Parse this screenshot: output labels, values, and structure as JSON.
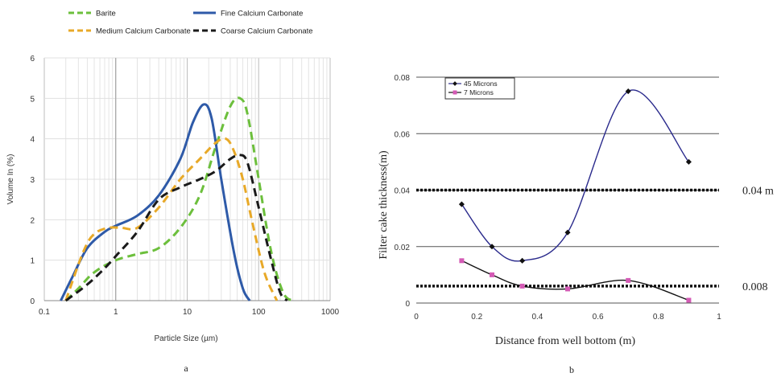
{
  "chart_data": [
    {
      "type": "line",
      "caption": "a",
      "xlabel": "Particle Size (µm)",
      "ylabel": "Volume In (%)",
      "xscale": "log",
      "xlim": [
        0.1,
        1000
      ],
      "ylim": [
        0,
        6
      ],
      "xticks": [
        "0.1",
        "1",
        "10",
        "100",
        "1000"
      ],
      "yticks": [
        "0",
        "1",
        "2",
        "3",
        "4",
        "5",
        "6"
      ],
      "grid": true,
      "legend_position": "top",
      "series": [
        {
          "name": "Barite",
          "color": "#6cbf3c",
          "dash": "dashed",
          "x": [
            0.2,
            0.3,
            0.5,
            1,
            2,
            4,
            8,
            15,
            25,
            40,
            55,
            70,
            100,
            150,
            220,
            300
          ],
          "y": [
            0,
            0.3,
            0.7,
            1.0,
            1.15,
            1.3,
            1.8,
            2.6,
            3.8,
            4.8,
            5.0,
            4.6,
            3.0,
            1.2,
            0.2,
            0
          ]
        },
        {
          "name": "Fine Calcium Carbonate",
          "color": "#2e5aa8",
          "dash": "solid",
          "x": [
            0.17,
            0.25,
            0.4,
            0.7,
            1,
            2,
            4,
            8,
            12,
            17,
            22,
            30,
            45,
            60,
            75
          ],
          "y": [
            0,
            0.6,
            1.3,
            1.7,
            1.85,
            2.1,
            2.6,
            3.5,
            4.4,
            4.85,
            4.5,
            3.0,
            1.2,
            0.3,
            0
          ]
        },
        {
          "name": "Medium Calcium Carbonate",
          "color": "#e8a928",
          "dash": "dashed",
          "x": [
            0.2,
            0.35,
            0.5,
            0.8,
            1.2,
            2,
            4,
            8,
            15,
            25,
            35,
            45,
            60,
            80,
            120,
            180
          ],
          "y": [
            0,
            1.2,
            1.65,
            1.8,
            1.8,
            1.8,
            2.3,
            3.0,
            3.5,
            3.9,
            4.0,
            3.7,
            3.0,
            2.0,
            0.7,
            0
          ]
        },
        {
          "name": "Coarse Calcium Carbonate",
          "color": "#1a1a1a",
          "dash": "dashed",
          "x": [
            0.2,
            0.4,
            0.7,
            1,
            2,
            4,
            8,
            15,
            25,
            40,
            55,
            70,
            100,
            150,
            200,
            250
          ],
          "y": [
            0,
            0.4,
            0.8,
            1.1,
            1.7,
            2.5,
            2.8,
            3.0,
            3.2,
            3.5,
            3.6,
            3.4,
            2.3,
            1.0,
            0.2,
            0
          ]
        }
      ]
    },
    {
      "type": "line",
      "caption": "b",
      "xlabel": "Distance from well bottom  (m)",
      "ylabel": "Filter cake thickness(m)",
      "xlim": [
        0,
        1
      ],
      "ylim": [
        0,
        0.08
      ],
      "xticks": [
        "0",
        "0.2",
        "0.4",
        "0.6",
        "0.8",
        "1"
      ],
      "yticks": [
        "0",
        "0.02",
        "0.04",
        "0.06",
        "0.08"
      ],
      "gridlines_y": [
        0.02,
        0.04,
        0.06
      ],
      "legend_position": "top-left",
      "series": [
        {
          "name": "45 Microns",
          "color": "#2a2a8c",
          "marker_color": "#111111",
          "x": [
            0.15,
            0.25,
            0.35,
            0.5,
            0.7,
            0.9
          ],
          "y": [
            0.035,
            0.02,
            0.015,
            0.025,
            0.075,
            0.05
          ]
        },
        {
          "name": "7 Microns",
          "color": "#111111",
          "marker_color": "#d45ab5",
          "x": [
            0.15,
            0.25,
            0.35,
            0.5,
            0.7,
            0.9
          ],
          "y": [
            0.015,
            0.01,
            0.006,
            0.005,
            0.008,
            0.001
          ]
        }
      ],
      "reference_lines": [
        {
          "y": 0.04,
          "label": "0.04 m"
        },
        {
          "y": 0.006,
          "label": "0.008"
        }
      ]
    }
  ]
}
